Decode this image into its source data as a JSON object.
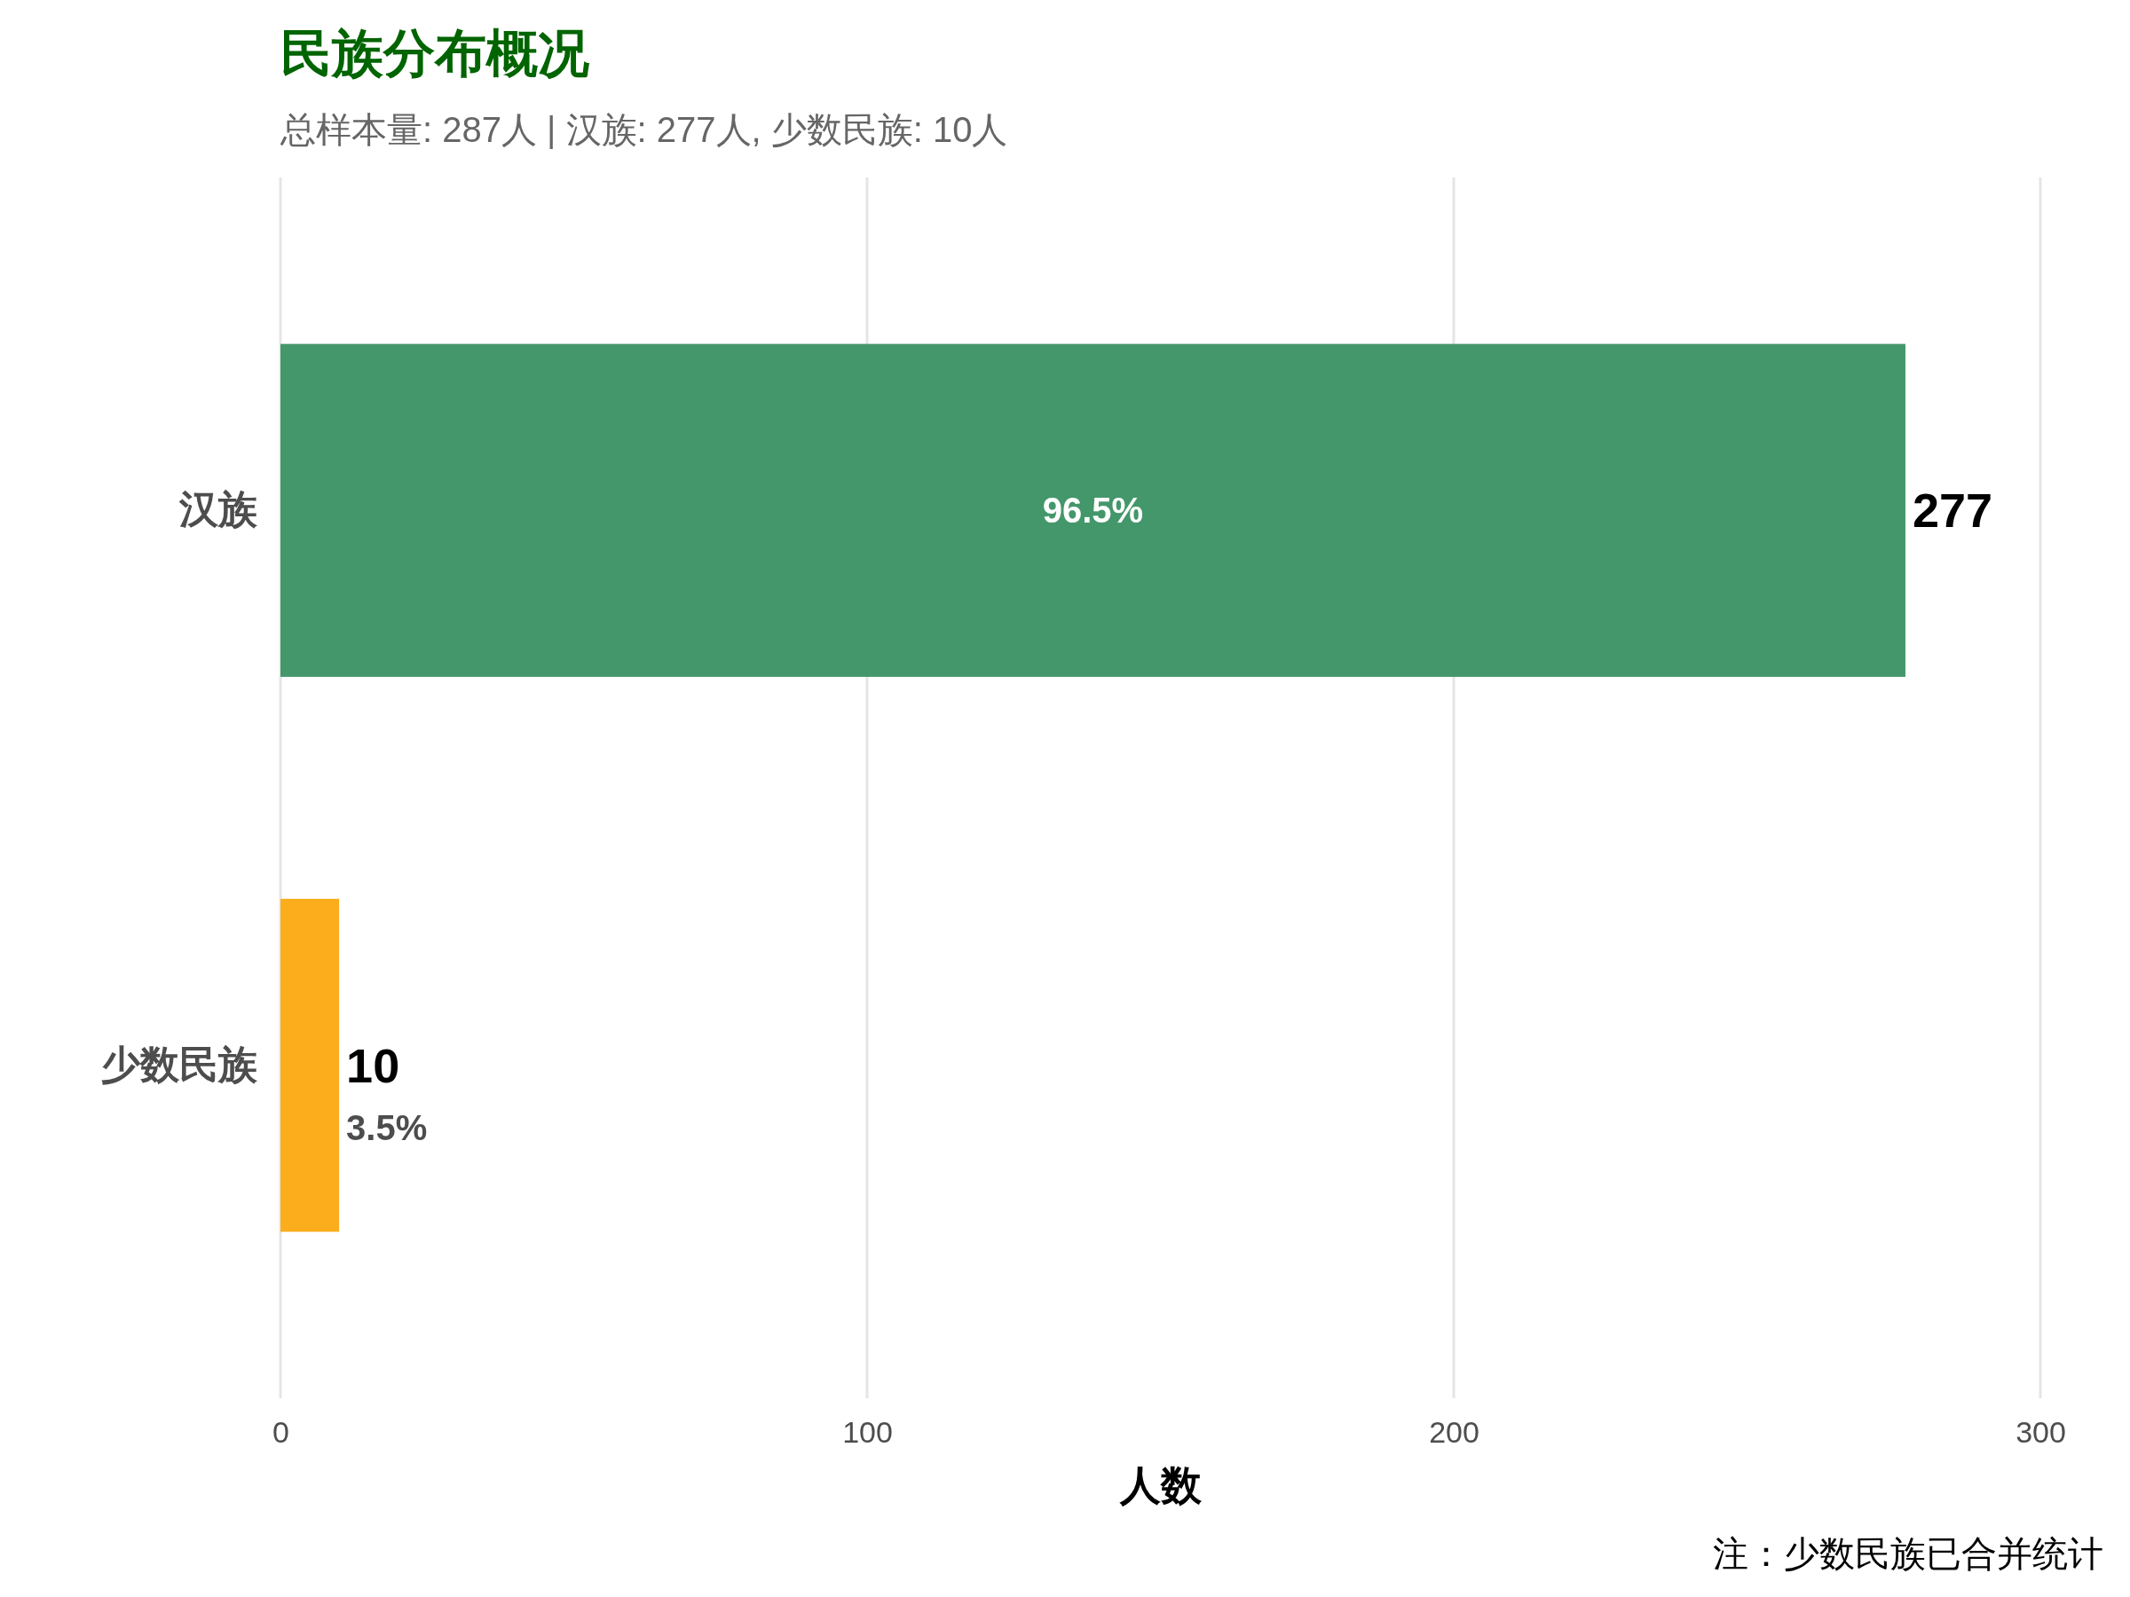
{
  "chart_data": {
    "type": "bar",
    "orientation": "horizontal",
    "title": "民族分布概况",
    "subtitle": "总样本量: 287人 | 汉族: 277人, 少数民族: 10人",
    "xlabel": "人数",
    "categories": [
      "汉族",
      "少数民族"
    ],
    "values": [
      277,
      10
    ],
    "colors": [
      "#44976a",
      "#fbad1c"
    ],
    "xlim": [
      0,
      300
    ],
    "xticks": [
      0,
      100,
      200,
      300
    ],
    "grid": "x",
    "data_labels": true,
    "annotations": [
      "96.5%",
      "3.5%",
      "注：少数民族已合并统计"
    ]
  }
}
